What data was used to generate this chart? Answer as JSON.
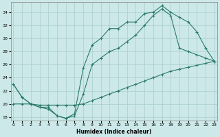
{
  "xlabel": "Humidex (Indice chaleur)",
  "bg_color": "#cce8e8",
  "line_color": "#2a7a6a",
  "grid_color": "#aacece",
  "xlim": [
    -0.3,
    23.3
  ],
  "ylim": [
    17.5,
    35.5
  ],
  "xticks": [
    0,
    1,
    2,
    3,
    4,
    5,
    6,
    7,
    8,
    9,
    10,
    11,
    12,
    13,
    14,
    15,
    16,
    17,
    18,
    19,
    20,
    21,
    22,
    23
  ],
  "yticks": [
    18,
    20,
    22,
    24,
    26,
    28,
    30,
    32,
    34
  ],
  "line1_x": [
    0,
    1,
    2,
    3,
    4,
    5,
    6,
    7,
    8,
    9,
    10,
    11,
    12,
    13,
    14,
    15,
    16,
    17,
    18,
    19,
    20,
    21,
    22,
    23
  ],
  "line1_y": [
    23.0,
    21.0,
    20.0,
    19.5,
    19.5,
    18.2,
    17.8,
    18.5,
    25.5,
    29.0,
    30.0,
    31.5,
    31.5,
    32.5,
    32.5,
    33.8,
    34.0,
    35.0,
    34.0,
    33.2,
    32.5,
    31.0,
    28.5,
    26.5
  ],
  "line2_x": [
    0,
    1,
    2,
    3,
    4,
    5,
    6,
    7,
    8,
    9,
    10,
    11,
    12,
    13,
    14,
    15,
    16,
    17,
    18,
    19,
    20,
    21,
    22,
    23
  ],
  "line2_y": [
    23.0,
    21.0,
    20.0,
    19.5,
    19.2,
    18.2,
    17.8,
    18.2,
    21.5,
    26.0,
    27.0,
    28.0,
    28.5,
    29.5,
    30.5,
    32.0,
    33.5,
    34.5,
    33.5,
    28.5,
    28.0,
    27.5,
    27.0,
    26.5
  ],
  "line3_x": [
    0,
    1,
    2,
    3,
    4,
    5,
    6,
    7,
    8,
    9,
    10,
    11,
    12,
    13,
    14,
    15,
    16,
    17,
    18,
    19,
    20,
    21,
    22,
    23
  ],
  "line3_y": [
    20.0,
    20.0,
    20.0,
    19.8,
    19.8,
    19.8,
    19.8,
    19.8,
    20.0,
    20.5,
    21.0,
    21.5,
    22.0,
    22.5,
    23.0,
    23.5,
    24.0,
    24.5,
    25.0,
    25.3,
    25.6,
    25.9,
    26.2,
    26.5
  ]
}
